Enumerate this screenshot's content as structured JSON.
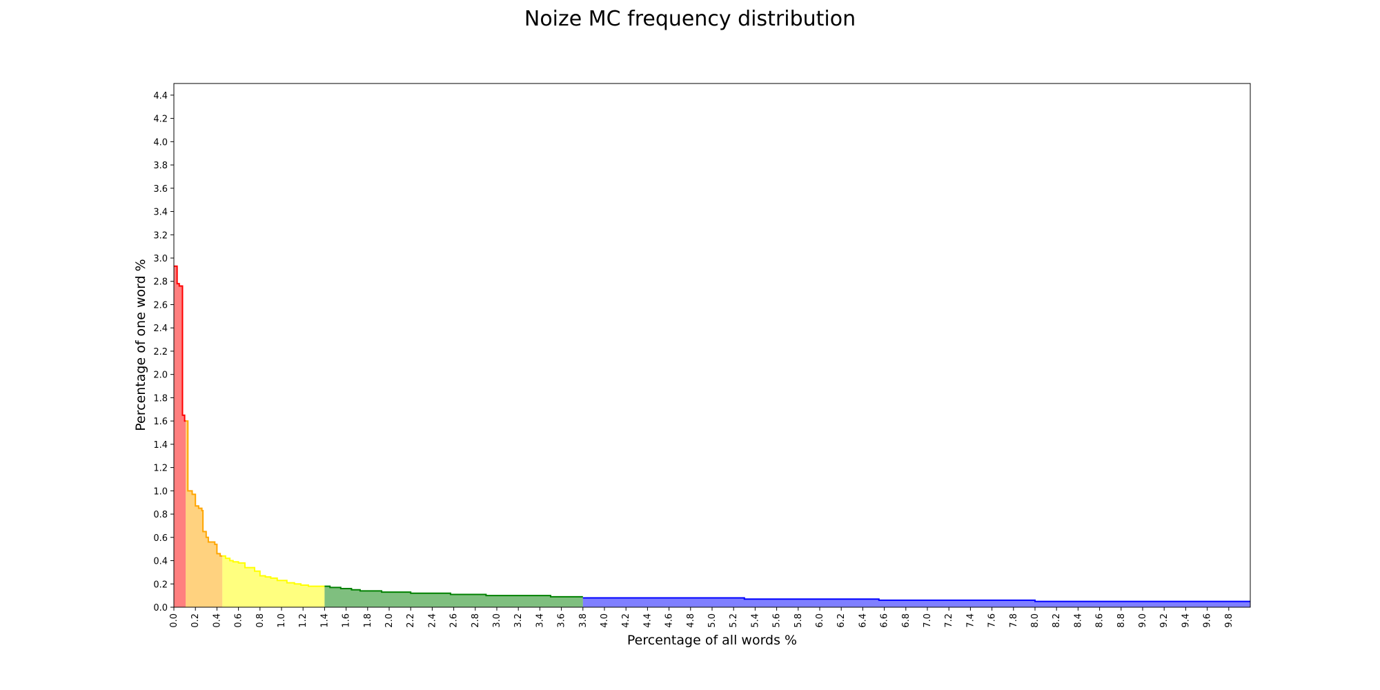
{
  "chart_data": {
    "type": "area",
    "title": "Noize MC frequency distribution",
    "xlabel": "Percentage of all words %",
    "ylabel": "Percentage of one word %",
    "xlim": [
      0,
      10.0
    ],
    "ylim": [
      0,
      4.5
    ],
    "grid": false,
    "x_ticks": [
      "0.0",
      "0.2",
      "0.4",
      "0.6",
      "0.8",
      "1.0",
      "1.2",
      "1.4",
      "1.6",
      "1.8",
      "2.0",
      "2.2",
      "2.4",
      "2.6",
      "2.8",
      "3.0",
      "3.2",
      "3.4",
      "3.6",
      "3.8",
      "4.0",
      "4.2",
      "4.4",
      "4.6",
      "4.8",
      "5.0",
      "5.2",
      "5.4",
      "5.6",
      "5.8",
      "6.0",
      "6.2",
      "6.4",
      "6.6",
      "6.8",
      "7.0",
      "7.2",
      "7.4",
      "7.6",
      "7.8",
      "8.0",
      "8.2",
      "8.4",
      "8.6",
      "8.8",
      "9.0",
      "9.2",
      "9.4",
      "9.6",
      "9.8"
    ],
    "y_ticks": [
      "0.0",
      "0.2",
      "0.4",
      "0.6",
      "0.8",
      "1.0",
      "1.2",
      "1.4",
      "1.6",
      "1.8",
      "2.0",
      "2.2",
      "2.4",
      "2.6",
      "2.8",
      "3.0",
      "3.2",
      "3.4",
      "3.6",
      "3.8",
      "4.0",
      "4.2",
      "4.4"
    ],
    "series": [
      {
        "color": "#ff0000",
        "steps": [
          [
            0.0,
            2.93
          ],
          [
            0.03,
            2.78
          ],
          [
            0.05,
            2.76
          ],
          [
            0.08,
            1.65
          ],
          [
            0.1,
            1.6
          ],
          [
            0.11,
            1.6
          ]
        ]
      },
      {
        "color": "#ffa500",
        "steps": [
          [
            0.11,
            1.6
          ],
          [
            0.13,
            1.0
          ],
          [
            0.17,
            0.97
          ],
          [
            0.2,
            0.87
          ],
          [
            0.23,
            0.85
          ],
          [
            0.26,
            0.83
          ],
          [
            0.27,
            0.65
          ],
          [
            0.3,
            0.6
          ],
          [
            0.32,
            0.56
          ],
          [
            0.38,
            0.54
          ],
          [
            0.4,
            0.46
          ],
          [
            0.43,
            0.44
          ],
          [
            0.45,
            0.44
          ]
        ]
      },
      {
        "color": "#ffff00",
        "steps": [
          [
            0.45,
            0.44
          ],
          [
            0.48,
            0.42
          ],
          [
            0.52,
            0.4
          ],
          [
            0.55,
            0.39
          ],
          [
            0.6,
            0.38
          ],
          [
            0.66,
            0.34
          ],
          [
            0.75,
            0.31
          ],
          [
            0.8,
            0.27
          ],
          [
            0.85,
            0.26
          ],
          [
            0.9,
            0.25
          ],
          [
            0.96,
            0.23
          ],
          [
            1.05,
            0.21
          ],
          [
            1.12,
            0.2
          ],
          [
            1.18,
            0.19
          ],
          [
            1.25,
            0.18
          ],
          [
            1.4,
            0.18
          ]
        ]
      },
      {
        "color": "#008000",
        "steps": [
          [
            1.4,
            0.18
          ],
          [
            1.45,
            0.17
          ],
          [
            1.55,
            0.16
          ],
          [
            1.65,
            0.15
          ],
          [
            1.73,
            0.14
          ],
          [
            1.93,
            0.13
          ],
          [
            2.2,
            0.12
          ],
          [
            2.57,
            0.11
          ],
          [
            2.9,
            0.1
          ],
          [
            3.5,
            0.09
          ],
          [
            3.8,
            0.09
          ]
        ]
      },
      {
        "color": "#0000ff",
        "steps": [
          [
            3.8,
            0.08
          ],
          [
            4.5,
            0.08
          ],
          [
            5.3,
            0.07
          ],
          [
            6.55,
            0.06
          ],
          [
            8.0,
            0.05
          ],
          [
            8.18,
            0.05
          ],
          [
            10.0,
            0.05
          ]
        ]
      }
    ]
  }
}
